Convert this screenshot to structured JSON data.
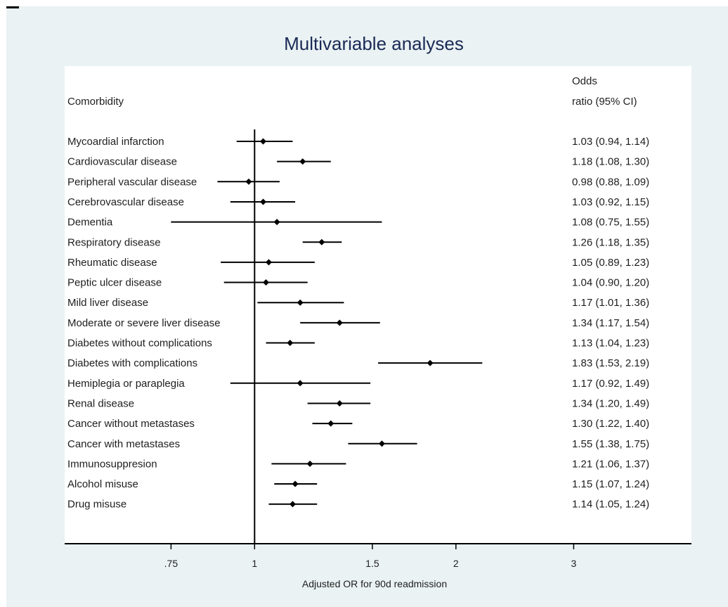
{
  "chart_data": {
    "type": "forest",
    "title": "Multivariable analyses",
    "row_header": "Comorbidity",
    "estimate_header": [
      "Odds",
      "ratio (95% CI)"
    ],
    "xlabel": "Adjusted OR for 90d readmission",
    "x_scale": "log",
    "xlim": [
      0.52,
      4.5
    ],
    "reference_line": 1,
    "x_ticks": [
      {
        "value": 0.75,
        "label": ".75"
      },
      {
        "value": 1,
        "label": "1"
      },
      {
        "value": 1.5,
        "label": "1.5"
      },
      {
        "value": 2,
        "label": "2"
      },
      {
        "value": 3,
        "label": "3"
      }
    ],
    "rows": [
      {
        "name": "Mycoardial infarction",
        "or": 1.03,
        "lo": 0.94,
        "hi": 1.14,
        "text": "1.03 (0.94, 1.14)"
      },
      {
        "name": "Cardiovascular disease",
        "or": 1.18,
        "lo": 1.08,
        "hi": 1.3,
        "text": "1.18 (1.08, 1.30)"
      },
      {
        "name": "Peripheral vascular disease",
        "or": 0.98,
        "lo": 0.88,
        "hi": 1.09,
        "text": "0.98 (0.88, 1.09)"
      },
      {
        "name": "Cerebrovascular disease",
        "or": 1.03,
        "lo": 0.92,
        "hi": 1.15,
        "text": "1.03 (0.92, 1.15)"
      },
      {
        "name": "Dementia",
        "or": 1.08,
        "lo": 0.75,
        "hi": 1.55,
        "text": "1.08 (0.75, 1.55)"
      },
      {
        "name": "Respiratory disease",
        "or": 1.26,
        "lo": 1.18,
        "hi": 1.35,
        "text": "1.26 (1.18, 1.35)"
      },
      {
        "name": "Rheumatic disease",
        "or": 1.05,
        "lo": 0.89,
        "hi": 1.23,
        "text": "1.05 (0.89, 1.23)"
      },
      {
        "name": "Peptic ulcer disease",
        "or": 1.04,
        "lo": 0.9,
        "hi": 1.2,
        "text": "1.04 (0.90, 1.20)"
      },
      {
        "name": "Mild liver disease",
        "or": 1.17,
        "lo": 1.01,
        "hi": 1.36,
        "text": "1.17 (1.01, 1.36)"
      },
      {
        "name": "Moderate or severe liver disease",
        "or": 1.34,
        "lo": 1.17,
        "hi": 1.54,
        "text": "1.34 (1.17, 1.54)"
      },
      {
        "name": "Diabetes without complications",
        "or": 1.13,
        "lo": 1.04,
        "hi": 1.23,
        "text": "1.13 (1.04, 1.23)"
      },
      {
        "name": "Diabetes with complications",
        "or": 1.83,
        "lo": 1.53,
        "hi": 2.19,
        "text": "1.83 (1.53, 2.19)"
      },
      {
        "name": "Hemiplegia or paraplegia",
        "or": 1.17,
        "lo": 0.92,
        "hi": 1.49,
        "text": "1.17 (0.92, 1.49)"
      },
      {
        "name": "Renal disease",
        "or": 1.34,
        "lo": 1.2,
        "hi": 1.49,
        "text": "1.34 (1.20, 1.49)"
      },
      {
        "name": "Cancer without metastases",
        "or": 1.3,
        "lo": 1.22,
        "hi": 1.4,
        "text": "1.30 (1.22, 1.40)"
      },
      {
        "name": "Cancer with metastases",
        "or": 1.55,
        "lo": 1.38,
        "hi": 1.75,
        "text": "1.55 (1.38, 1.75)"
      },
      {
        "name": "Immunosuppresion",
        "or": 1.21,
        "lo": 1.06,
        "hi": 1.37,
        "text": "1.21 (1.06, 1.37)"
      },
      {
        "name": "Alcohol misuse",
        "or": 1.15,
        "lo": 1.07,
        "hi": 1.24,
        "text": "1.15 (1.07, 1.24)"
      },
      {
        "name": "Drug misuse",
        "or": 1.14,
        "lo": 1.05,
        "hi": 1.24,
        "text": "1.14 (1.05, 1.24)"
      }
    ]
  }
}
